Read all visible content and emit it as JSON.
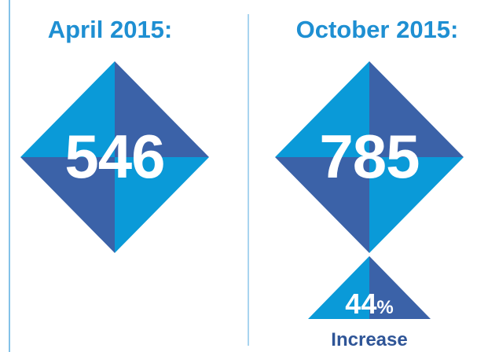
{
  "panels": [
    {
      "title": "April 2015:",
      "value": 546
    },
    {
      "title": "October 2015:",
      "value": 785
    }
  ],
  "change": {
    "value": 44,
    "unit": "%",
    "label": "Increase"
  }
}
